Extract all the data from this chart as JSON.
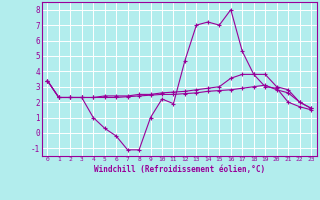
{
  "xlabel": "Windchill (Refroidissement éolien,°C)",
  "xlim": [
    -0.5,
    23.5
  ],
  "ylim": [
    -1.5,
    8.5
  ],
  "yticks": [
    -1,
    0,
    1,
    2,
    3,
    4,
    5,
    6,
    7,
    8
  ],
  "xticks": [
    0,
    1,
    2,
    3,
    4,
    5,
    6,
    7,
    8,
    9,
    10,
    11,
    12,
    13,
    14,
    15,
    16,
    17,
    18,
    19,
    20,
    21,
    22,
    23
  ],
  "background_color": "#b2eded",
  "grid_color": "#ffffff",
  "line_color": "#990099",
  "line1_x": [
    0,
    1,
    2,
    3,
    4,
    5,
    6,
    7,
    8,
    9,
    10,
    11,
    12,
    13,
    14,
    15,
    16,
    17,
    18,
    19,
    20,
    21,
    22,
    23
  ],
  "line1_y": [
    3.4,
    2.3,
    2.3,
    2.3,
    1.0,
    0.3,
    -0.2,
    -1.1,
    -1.1,
    1.0,
    2.2,
    1.9,
    4.7,
    7.0,
    7.2,
    7.0,
    8.0,
    5.3,
    3.8,
    3.0,
    2.9,
    2.0,
    1.7,
    1.5
  ],
  "line2_x": [
    0,
    1,
    2,
    3,
    4,
    5,
    6,
    7,
    8,
    9,
    10,
    11,
    12,
    13,
    14,
    15,
    16,
    17,
    18,
    19,
    20,
    21,
    22,
    23
  ],
  "line2_y": [
    3.4,
    2.3,
    2.3,
    2.3,
    2.3,
    2.4,
    2.4,
    2.4,
    2.5,
    2.5,
    2.6,
    2.65,
    2.7,
    2.8,
    2.9,
    3.0,
    3.55,
    3.8,
    3.8,
    3.8,
    3.0,
    2.8,
    2.0,
    1.6
  ],
  "line3_x": [
    0,
    1,
    2,
    3,
    4,
    5,
    6,
    7,
    8,
    9,
    10,
    11,
    12,
    13,
    14,
    15,
    16,
    17,
    18,
    19,
    20,
    21,
    22,
    23
  ],
  "line3_y": [
    3.4,
    2.3,
    2.3,
    2.3,
    2.3,
    2.3,
    2.3,
    2.35,
    2.4,
    2.45,
    2.5,
    2.5,
    2.55,
    2.6,
    2.7,
    2.75,
    2.8,
    2.9,
    3.0,
    3.1,
    2.8,
    2.6,
    2.0,
    1.6
  ]
}
